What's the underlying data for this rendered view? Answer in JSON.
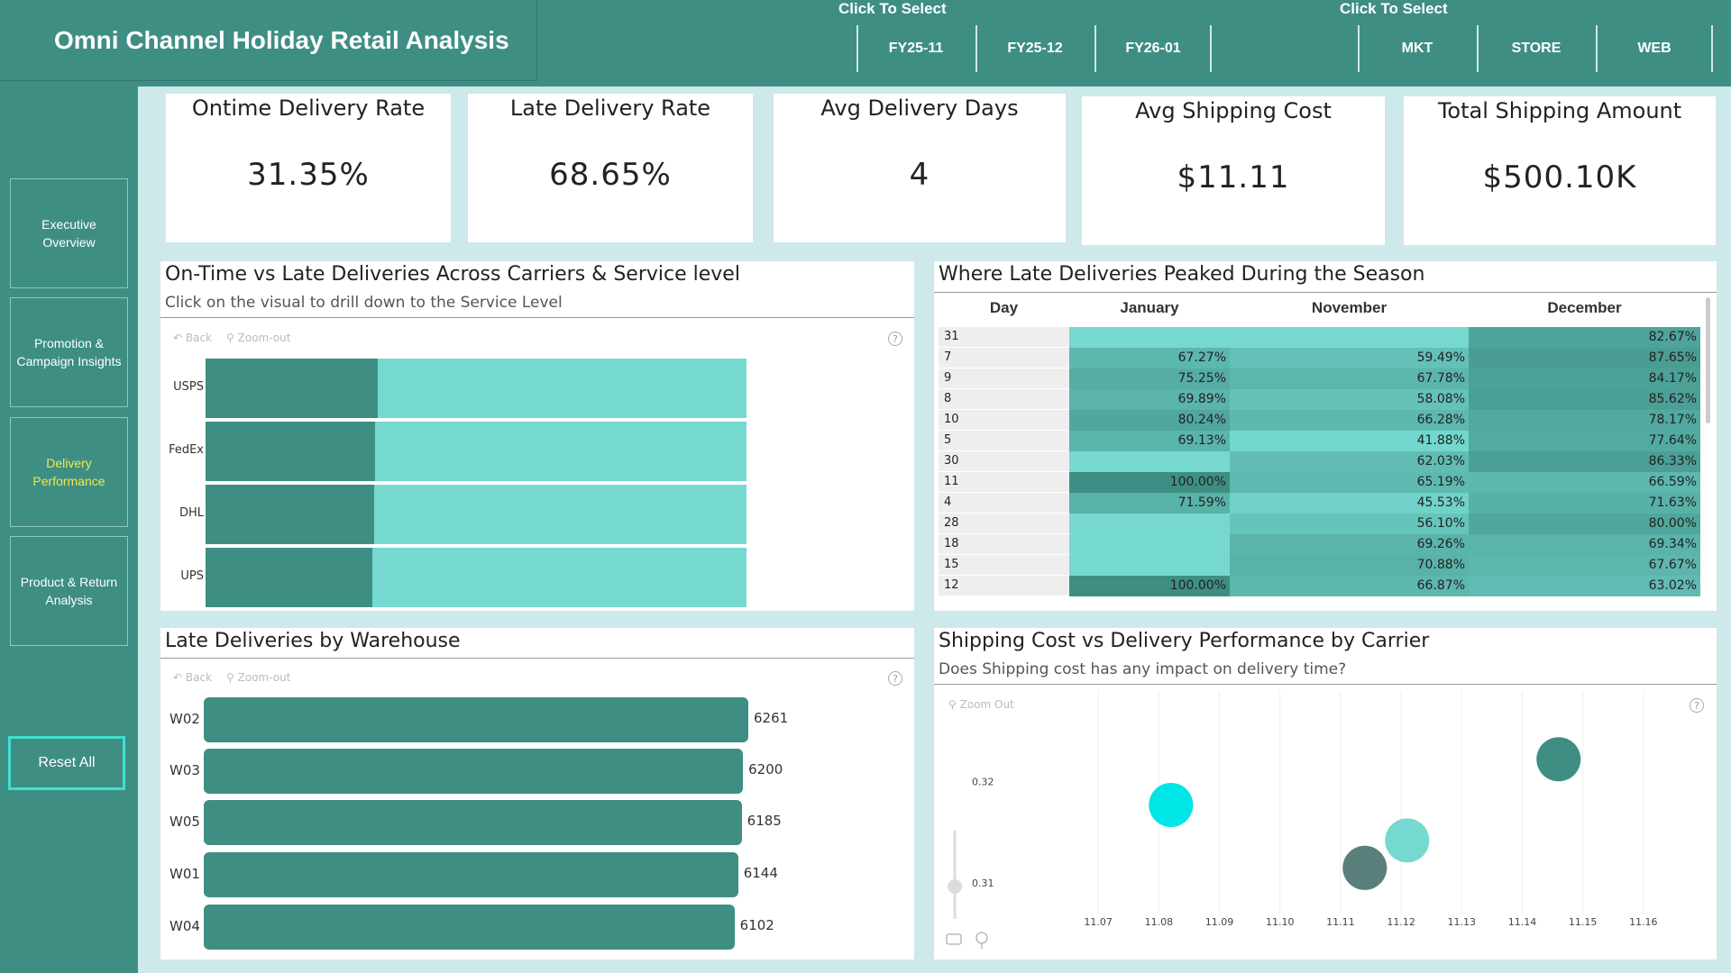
{
  "header": {
    "title": "Omni Channel Holiday Retail Analysis",
    "period_caption": "Click To Select",
    "channel_caption": "Click To Select",
    "periods": [
      "FY25-11",
      "FY25-12",
      "FY26-01"
    ],
    "channels": [
      "MKT",
      "STORE",
      "WEB"
    ]
  },
  "sidebar": {
    "items": [
      {
        "label": "Executive Overview"
      },
      {
        "label": "Promotion & Campaign Insights"
      },
      {
        "label": "Delivery Performance"
      },
      {
        "label": "Product & Return Analysis"
      }
    ],
    "reset_label": "Reset All"
  },
  "kpis": [
    {
      "label": "Ontime Delivery Rate",
      "value": "31.35%"
    },
    {
      "label": "Late Delivery Rate",
      "value": "68.65%"
    },
    {
      "label": "Avg Delivery Days",
      "value": "4"
    },
    {
      "label": "Avg Shipping Cost",
      "value": "$11.11"
    },
    {
      "label": "Total Shipping Amount",
      "value": "$500.10K"
    }
  ],
  "carrier_panel": {
    "title": "On-Time vs Late Deliveries Across Carriers & Service level",
    "subtitle": "Click on the visual to drill down to the Service Level",
    "back_label": "Back",
    "zoom_label": "Zoom-out"
  },
  "warehouse_panel": {
    "title": "Late Deliveries by Warehouse",
    "back_label": "Back",
    "zoom_label": "Zoom-out"
  },
  "matrix_panel": {
    "title": "Where Late Deliveries Peaked During the Season",
    "columns": [
      "Day",
      "January",
      "November",
      "December"
    ],
    "rows": [
      {
        "day": "31",
        "january": "",
        "november": "",
        "december": "82.67%"
      },
      {
        "day": "7",
        "january": "67.27%",
        "november": "59.49%",
        "december": "87.65%"
      },
      {
        "day": "9",
        "january": "75.25%",
        "november": "67.78%",
        "december": "84.17%"
      },
      {
        "day": "8",
        "january": "69.89%",
        "november": "58.08%",
        "december": "85.62%"
      },
      {
        "day": "10",
        "january": "80.24%",
        "november": "66.28%",
        "december": "78.17%"
      },
      {
        "day": "5",
        "january": "69.13%",
        "november": "41.88%",
        "december": "77.64%"
      },
      {
        "day": "30",
        "january": "",
        "november": "62.03%",
        "december": "86.33%"
      },
      {
        "day": "11",
        "january": "100.00%",
        "november": "65.19%",
        "december": "66.59%"
      },
      {
        "day": "4",
        "january": "71.59%",
        "november": "45.53%",
        "december": "71.63%"
      },
      {
        "day": "28",
        "january": "",
        "november": "56.10%",
        "december": "80.00%"
      },
      {
        "day": "18",
        "january": "",
        "november": "69.26%",
        "december": "69.34%"
      },
      {
        "day": "15",
        "january": "",
        "november": "70.88%",
        "december": "67.67%"
      },
      {
        "day": "12",
        "january": "100.00%",
        "november": "66.87%",
        "december": "63.02%"
      }
    ]
  },
  "scatter_panel": {
    "title": "Shipping Cost vs Delivery Performance by Carrier",
    "subtitle": "Does Shipping cost has any impact on delivery time?",
    "zoom_label": "Zoom Out"
  },
  "colors": {
    "teal_dark": "#3e8e84",
    "teal_light": "#75d9cf",
    "cyan": "#00e5e5",
    "accent_active": "#f2e94e"
  },
  "chart_data": [
    {
      "type": "bar",
      "orientation": "horizontal-stacked-100",
      "categories": [
        "USPS",
        "FedEx",
        "DHL",
        "UPS"
      ],
      "series": [
        {
          "values": [
            31.9,
            31.4,
            31.1,
            30.9
          ]
        },
        {
          "values": [
            68.1,
            68.6,
            68.9,
            69.1
          ]
        }
      ],
      "xlim": [
        0,
        100
      ]
    },
    {
      "type": "bar",
      "orientation": "horizontal",
      "categories": [
        "W02",
        "W03",
        "W05",
        "W01",
        "W04"
      ],
      "values": [
        6261,
        6200,
        6185,
        6144,
        6102
      ]
    },
    {
      "type": "scatter",
      "x_ticks": [
        "11.07",
        "11.08",
        "11.09",
        "11.10",
        "11.11",
        "11.12",
        "11.13",
        "11.14",
        "11.15",
        "11.16"
      ],
      "y_ticks": [
        "0.31",
        "0.32"
      ],
      "xlim": [
        11.06,
        11.17
      ],
      "ylim": [
        0.3062,
        0.3236
      ],
      "points": [
        {
          "x": 11.082,
          "y": 0.3177,
          "size": 38,
          "color": "#00e5e5"
        },
        {
          "x": 11.121,
          "y": 0.3142,
          "size": 38,
          "color": "#75d9cf"
        },
        {
          "x": 11.114,
          "y": 0.3115,
          "size": 38,
          "color": "#5a7f7b"
        },
        {
          "x": 11.146,
          "y": 0.3222,
          "size": 38,
          "color": "#3e8e84"
        }
      ]
    }
  ]
}
